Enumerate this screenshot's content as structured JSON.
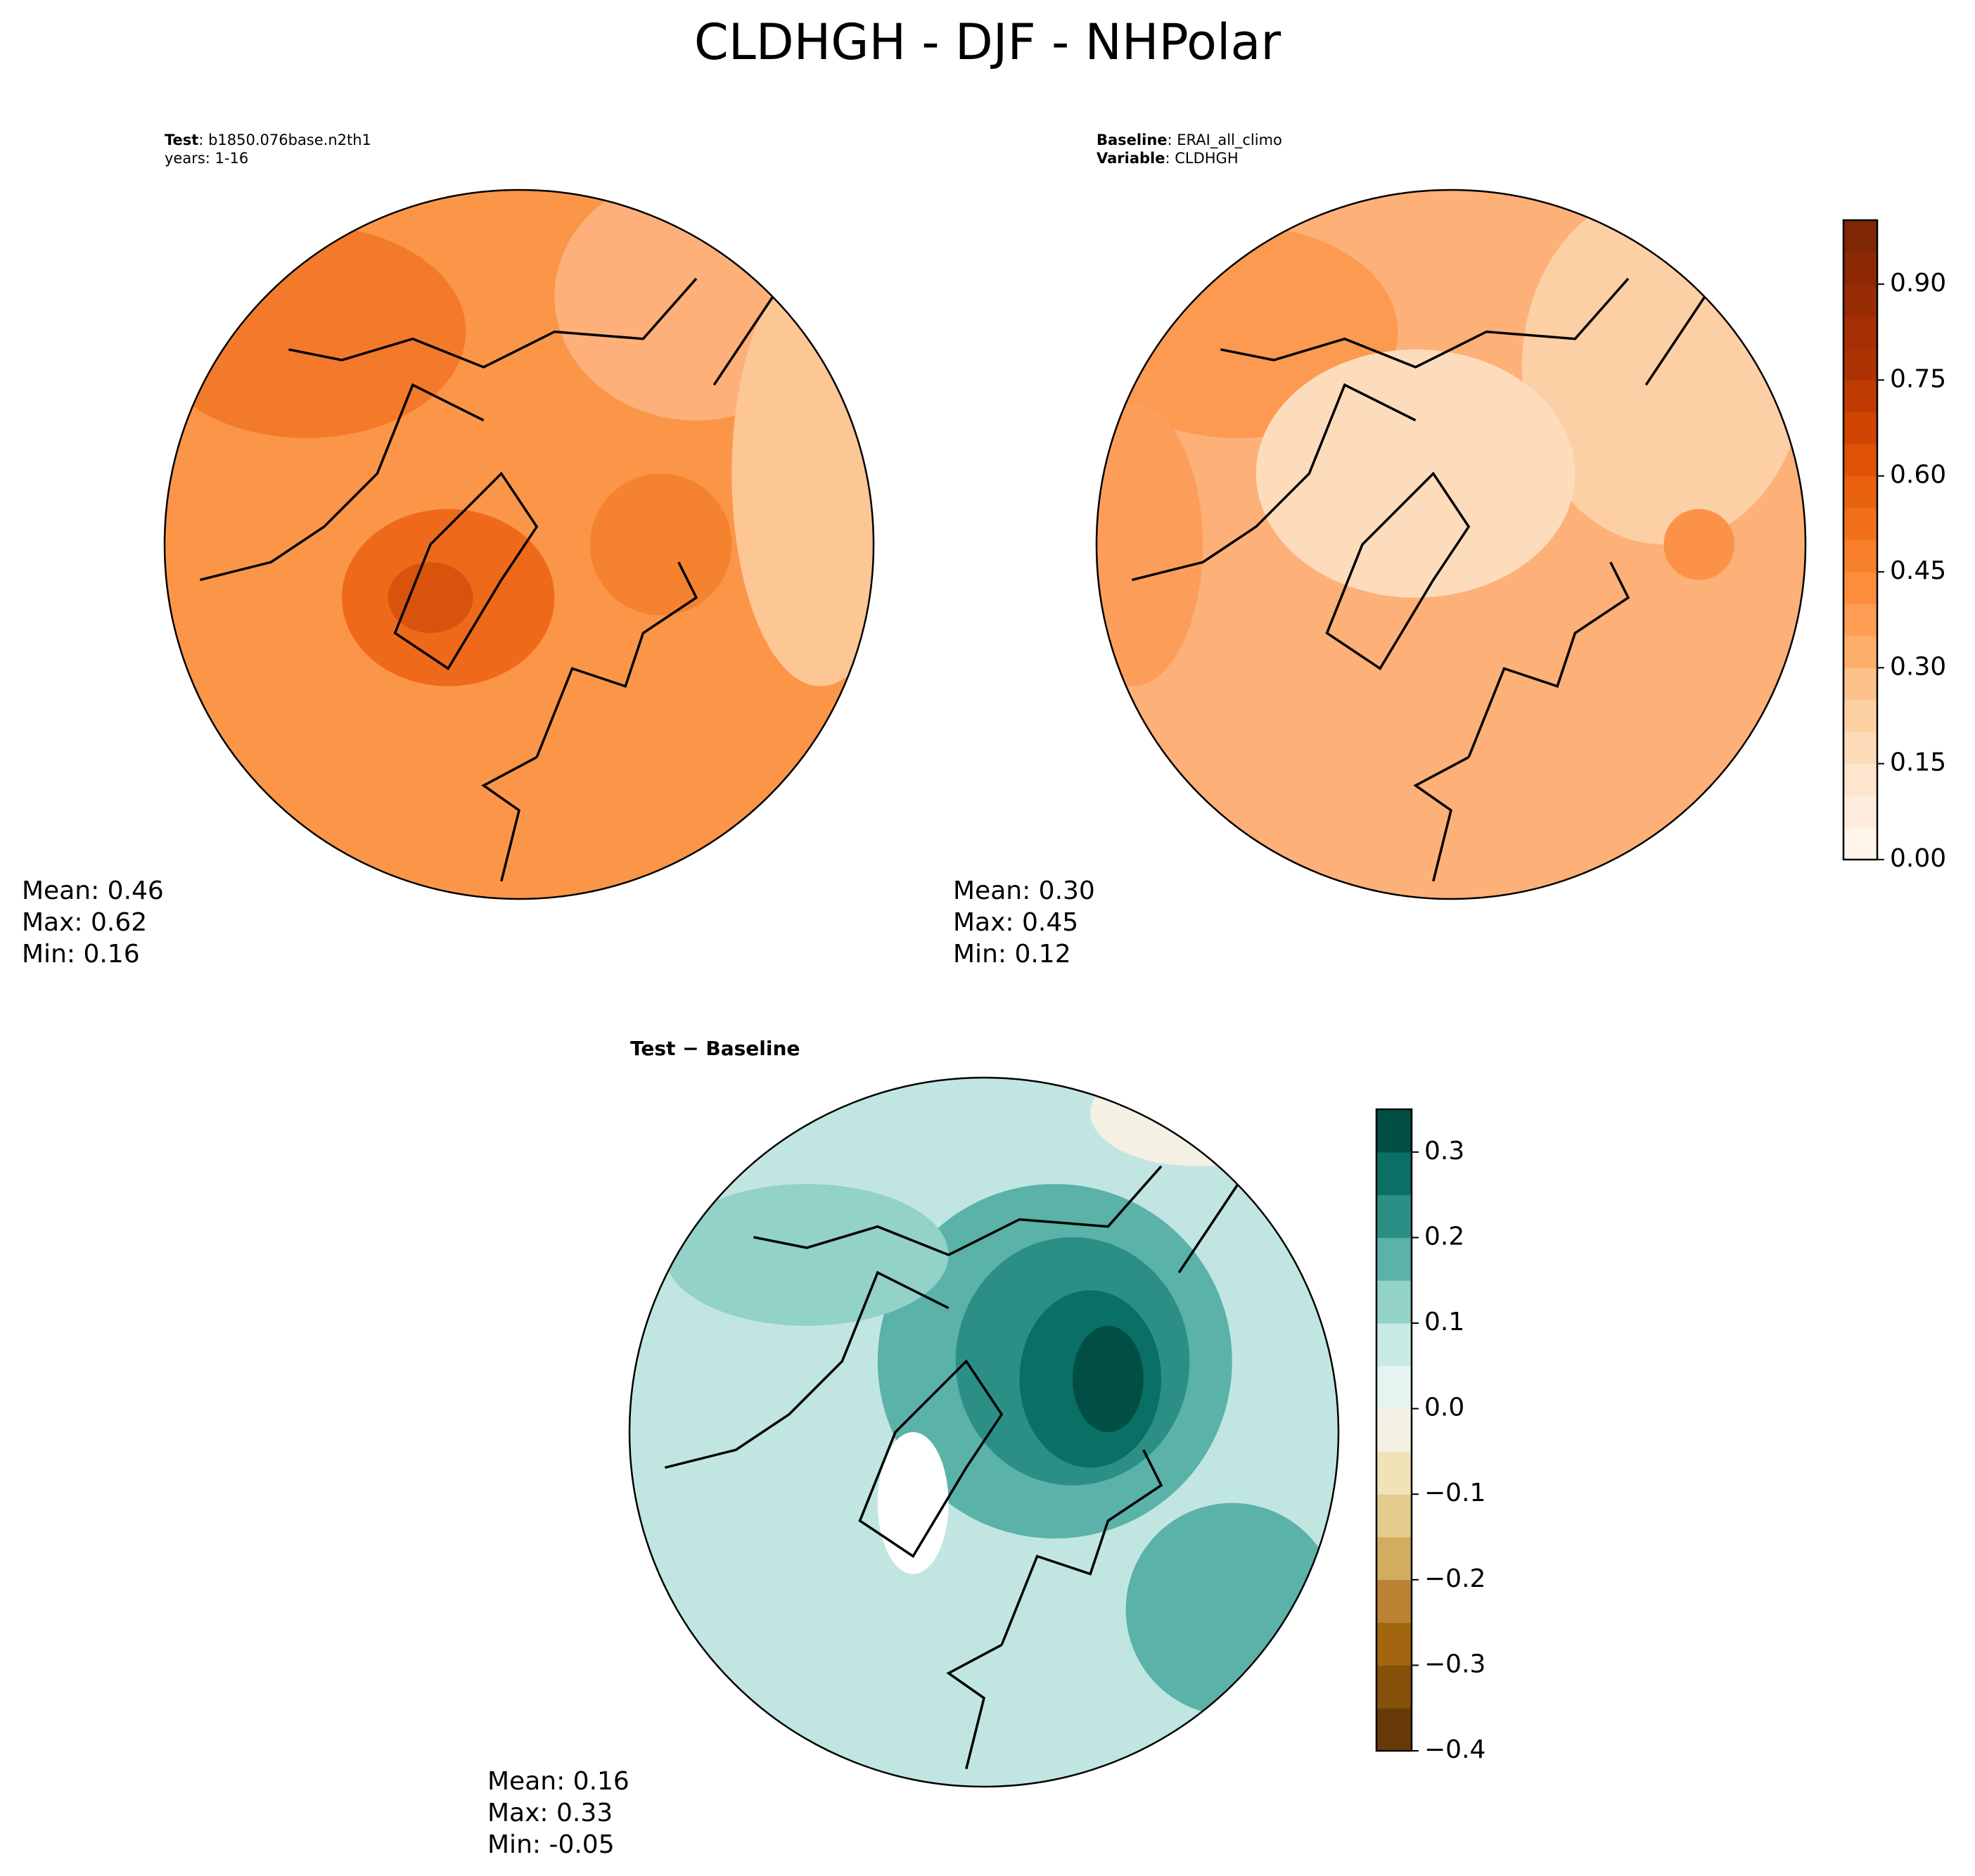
{
  "title": "CLDHGH - DJF - NHPolar",
  "panels": [
    {
      "header": [
        [
          {
            "text": "Test",
            "bold": true
          },
          {
            "text": ": b1850.076base.n2th1",
            "bold": false
          }
        ],
        [
          {
            "text": "years: 1-16",
            "bold": false
          }
        ]
      ],
      "stats": [
        "Mean:  0.46",
        "Max:  0.62",
        "Min:  0.16"
      ]
    },
    {
      "header": [
        [
          {
            "text": "Baseline",
            "bold": true
          },
          {
            "text": ": ERAI_all_climo",
            "bold": false
          }
        ],
        [
          {
            "text": "Variable",
            "bold": true
          },
          {
            "text": ": CLDHGH",
            "bold": false
          }
        ]
      ],
      "stats": [
        "Mean:  0.30",
        "Max:  0.45",
        "Min:  0.12"
      ]
    },
    {
      "header": [
        [
          {
            "text": "Test − Baseline",
            "bold": true
          }
        ]
      ],
      "stats": [
        "Mean:  0.16",
        "Max:  0.33",
        "Min: -0.05"
      ]
    }
  ],
  "colorbars": [
    {
      "lim": [
        0,
        1.0
      ],
      "ticks": [
        {
          "value": 0,
          "label": "0.00"
        },
        {
          "value": 0.15,
          "label": "0.15"
        },
        {
          "value": 0.3,
          "label": "0.30"
        },
        {
          "value": 0.45,
          "label": "0.45"
        },
        {
          "value": 0.6,
          "label": "0.60"
        },
        {
          "value": 0.75,
          "label": "0.75"
        },
        {
          "value": 0.9,
          "label": "0.90"
        }
      ],
      "colors": [
        "#fff5eb",
        "#feeddc",
        "#fee6ce",
        "#fddbb8",
        "#fdd0a2",
        "#fdc28c",
        "#fdae6b",
        "#fd9e54",
        "#fd8d3c",
        "#f87f2c",
        "#f3701b",
        "#e8620f",
        "#e05206",
        "#d04501",
        "#bf3b02",
        "#ad3203",
        "#a62f03",
        "#982c04",
        "#8c2904",
        "#7f2704"
      ]
    },
    {
      "lim": [
        -0.4,
        0.35
      ],
      "ticks": [
        {
          "value": -0.4,
          "label": "−0.4"
        },
        {
          "value": -0.3,
          "label": "−0.3"
        },
        {
          "value": -0.2,
          "label": "−0.2"
        },
        {
          "value": -0.1,
          "label": "−0.1"
        },
        {
          "value": 0,
          "label": "0.0"
        },
        0.1,
        0.2,
        0.3
      ],
      "colors": [
        "#683a07",
        "#855009",
        "#a1660f",
        "#bc8233",
        "#d2ad60",
        "#e4cc8c",
        "#f1e2b8",
        "#f5f0e4",
        "#e6f4f1",
        "#c7eae5",
        "#92d2c8",
        "#5ab2a8",
        "#2b8f85",
        "#0a6f64",
        "#014f44"
      ]
    }
  ]
}
